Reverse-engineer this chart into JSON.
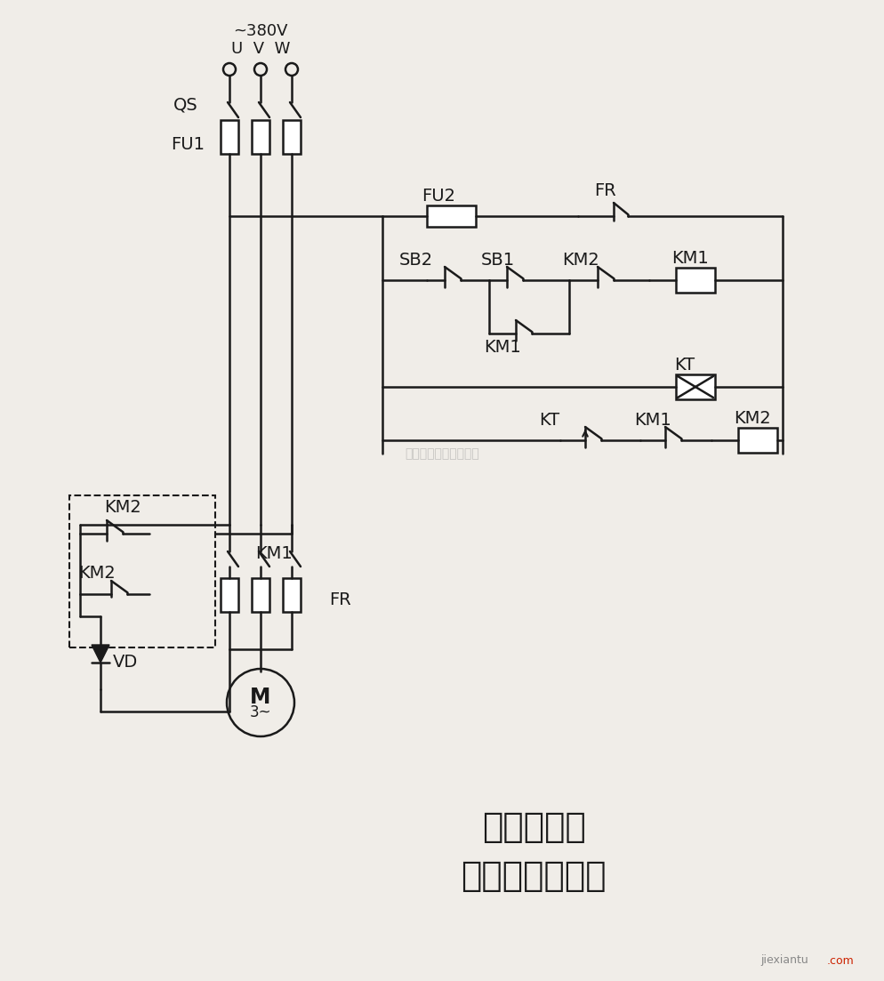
{
  "bg_color": "#f0ede8",
  "line_color": "#1a1a1a",
  "title_line1": "单管整流能",
  "title_line2": "耗制动控制电路",
  "title_fontsize": 28,
  "label_fontsize": 14,
  "watermark": "杭州将睿科技有限公司"
}
